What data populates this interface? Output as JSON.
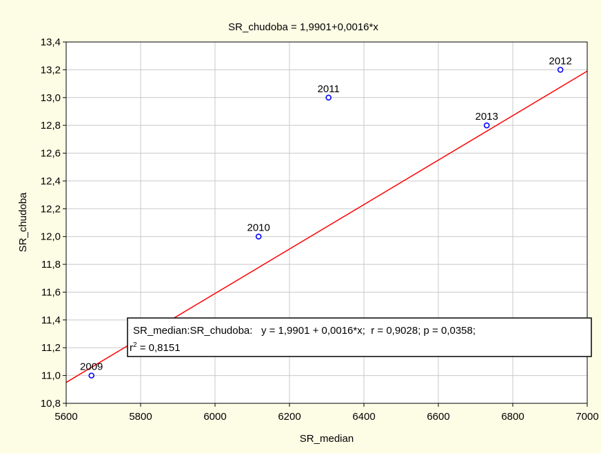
{
  "chart_data": {
    "type": "scatter",
    "title": "SR_chudoba = 1,9901+0,0016*x",
    "xlabel": "SR_median",
    "ylabel": "SR_chudoba",
    "xlim": [
      5600,
      7000
    ],
    "ylim": [
      10.8,
      13.4
    ],
    "x_ticks": [
      5600,
      5800,
      6000,
      6200,
      6400,
      6600,
      6800,
      7000
    ],
    "y_ticks": [
      10.8,
      11.0,
      11.2,
      11.4,
      11.6,
      11.8,
      12.0,
      12.2,
      12.4,
      12.6,
      12.8,
      13.0,
      13.2,
      13.4
    ],
    "x_tick_labels": [
      "5600",
      "5800",
      "6000",
      "6200",
      "6400",
      "6600",
      "6800",
      "7000"
    ],
    "y_tick_labels": [
      "10,8",
      "11,0",
      "11,2",
      "11,4",
      "11,6",
      "11,8",
      "12,0",
      "12,2",
      "12,4",
      "12,6",
      "12,8",
      "13,0",
      "13,2",
      "13,4"
    ],
    "grid": true,
    "points": [
      {
        "label": "2009",
        "x": 5668,
        "y": 11.0
      },
      {
        "label": "2010",
        "x": 6117,
        "y": 12.0
      },
      {
        "label": "2011",
        "x": 6305,
        "y": 13.0
      },
      {
        "label": "2012",
        "x": 6928,
        "y": 13.2
      },
      {
        "label": "2013",
        "x": 6730,
        "y": 12.8
      }
    ],
    "regression": {
      "intercept": 1.9901,
      "slope": 0.0016
    },
    "annotation": {
      "line1": "SR_median:SR_chudoba:   y = 1,9901 + 0,0016*x;  r = 0,9028; p = 0,0358;",
      "r2_prefix": "r",
      "r2_sup": "2",
      "r2_value": " = 0,8151"
    },
    "colors": {
      "background": "#fdfde6",
      "plot_area": "#ffffff",
      "points": "#0000ff",
      "regression_line": "#ff0000",
      "grid": "#c8c8c8"
    }
  }
}
